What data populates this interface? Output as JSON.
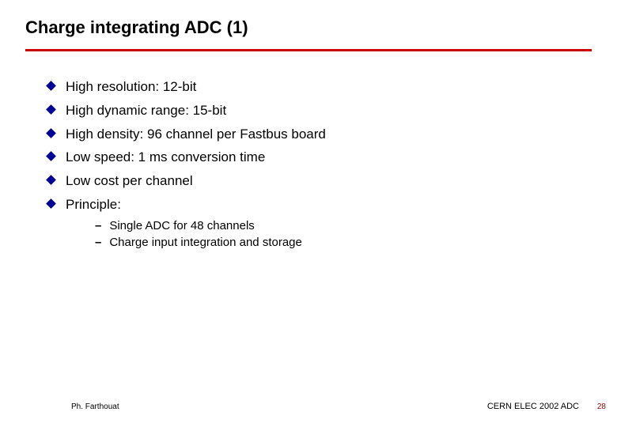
{
  "slide": {
    "title": "Charge integrating ADC (1)",
    "bullets": [
      "High resolution: 12-bit",
      "High dynamic range: 15-bit",
      "High density: 96 channel per Fastbus board",
      "Low speed: 1 ms conversion time",
      "Low cost per channel",
      "Principle:"
    ],
    "subBullets": [
      "Single ADC for 48 channels",
      "Charge input integration and storage"
    ],
    "footer": {
      "left": "Ph. Farthouat",
      "right": "CERN ELEC 2002 ADC",
      "pageNumber": "28"
    },
    "colors": {
      "dividerColor": "#cc0000",
      "bulletColor": "#000099",
      "textColor": "#000000",
      "pageNumberColor": "#990000",
      "backgroundColor": "#ffffff"
    },
    "typography": {
      "titleFontSize": 22,
      "bulletFontSize": 17,
      "subBulletFontSize": 15,
      "footerFontSize": 10
    }
  }
}
